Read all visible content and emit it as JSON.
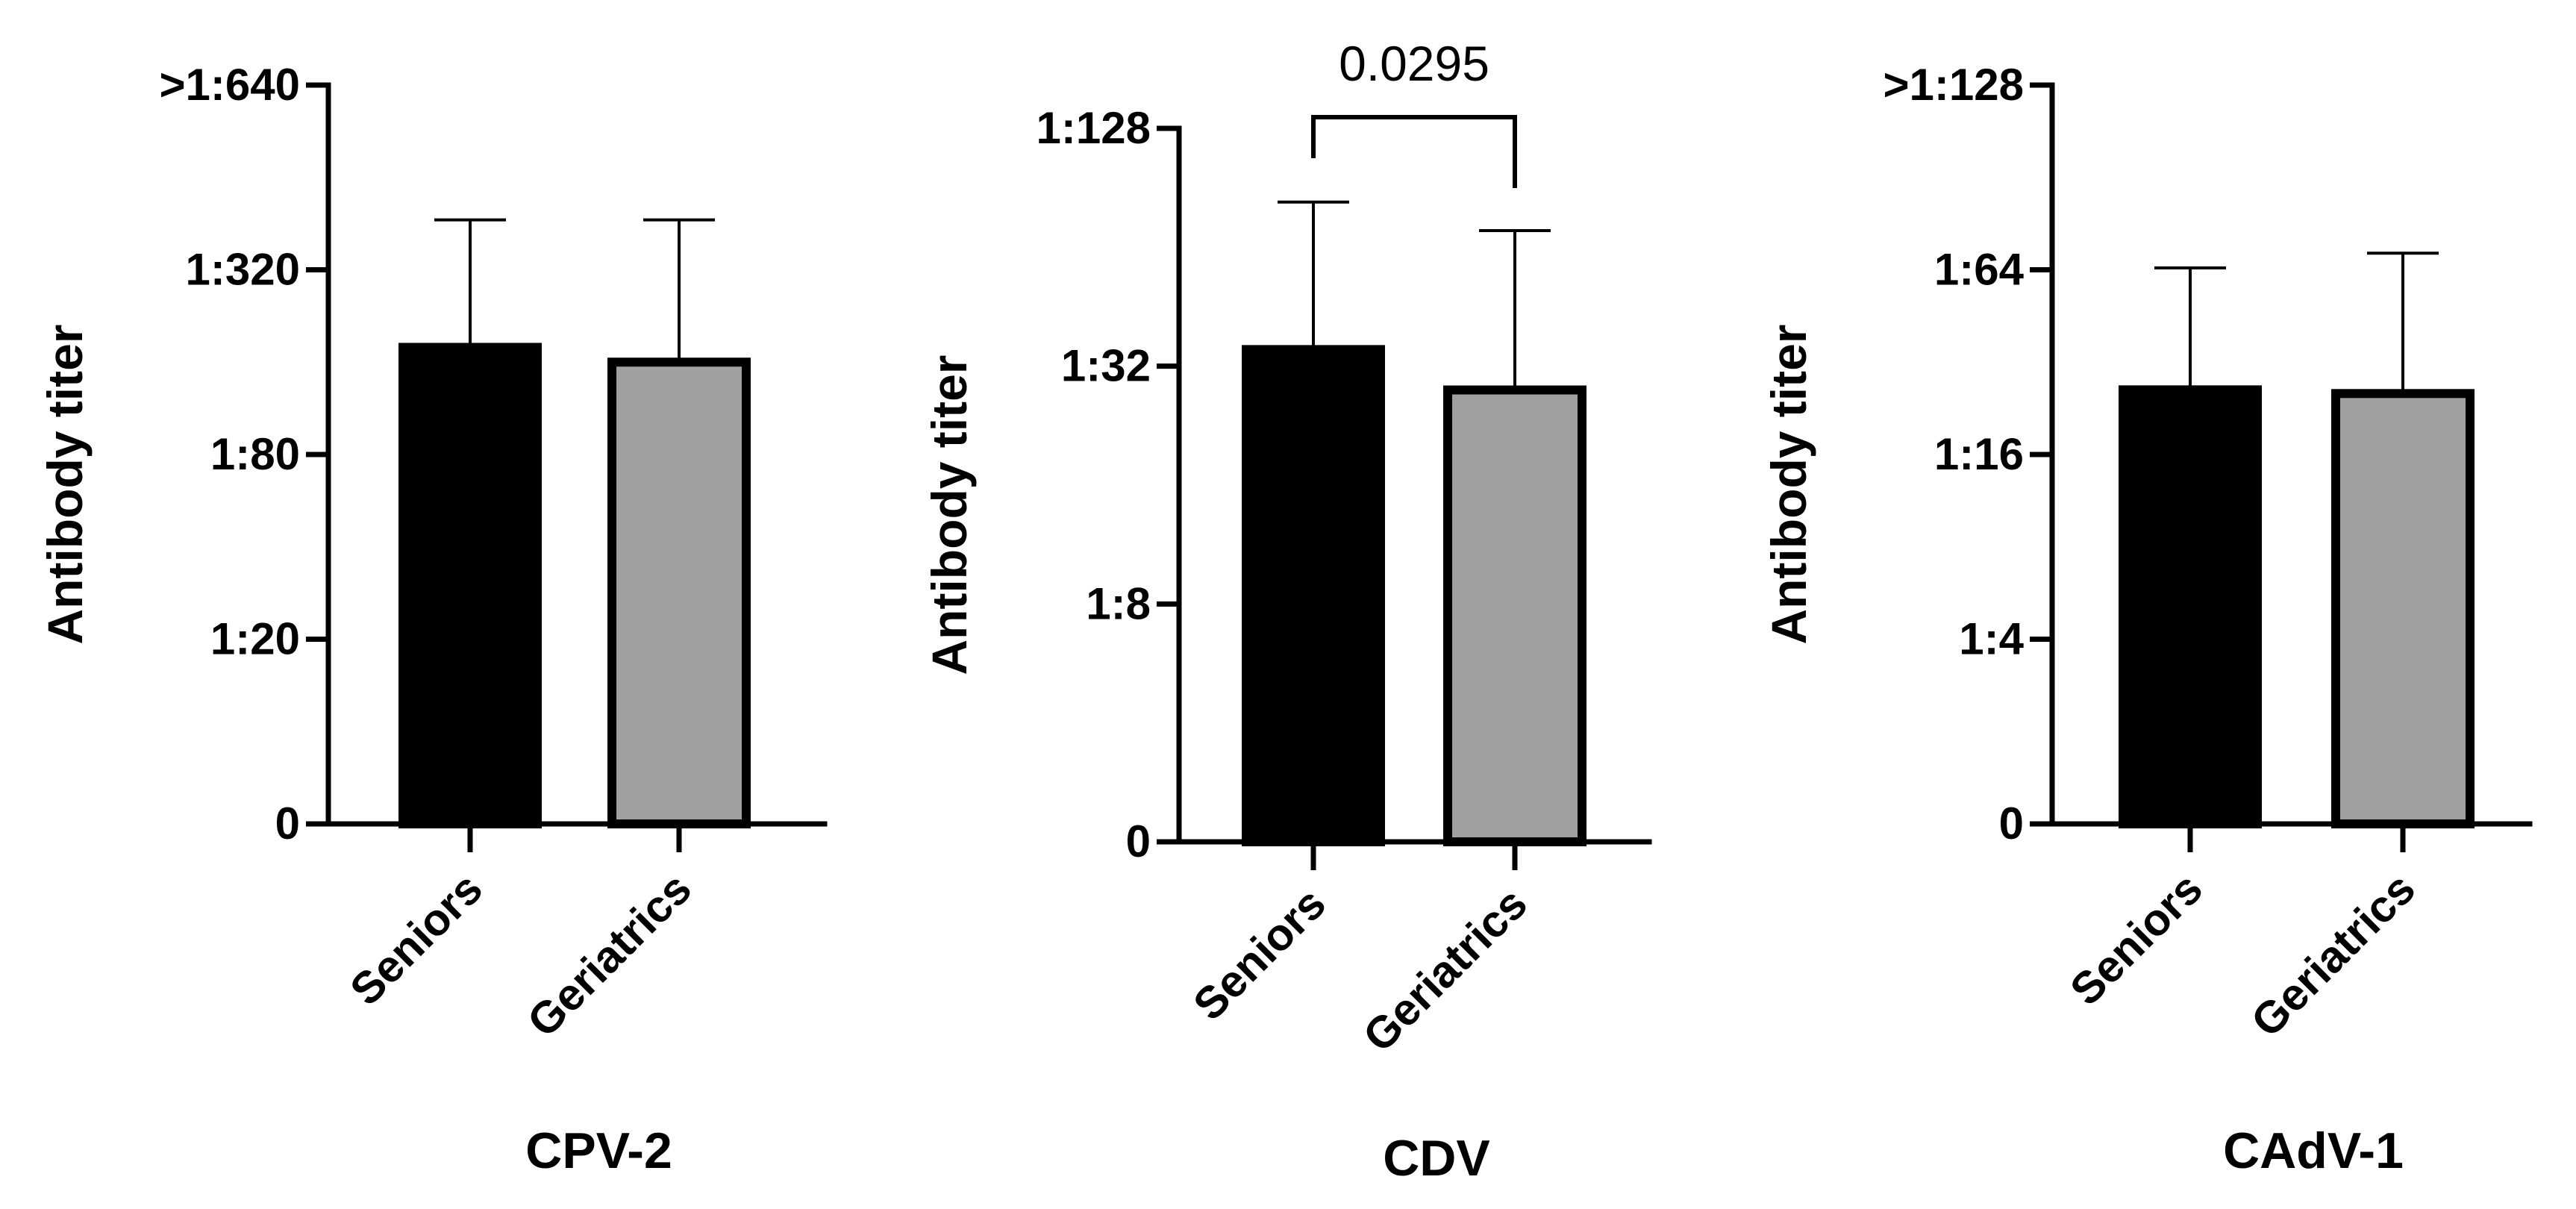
{
  "colors": {
    "seniors": "#000000",
    "geriatrics": "#a0a0a0"
  },
  "chart_data": [
    {
      "type": "bar",
      "name": "cpv2",
      "xlabel": "CPV-2",
      "ylabel": "Antibody titer",
      "categories": [
        "Seniors",
        "Geriatrics"
      ],
      "yscale": "log2",
      "ylim_log2": [
        0,
        4
      ],
      "y_ticks": [
        {
          "value": 0,
          "label": "0"
        },
        {
          "value": 1,
          "label": "1:20"
        },
        {
          "value": 2,
          "label": "1:80"
        },
        {
          "value": 3,
          "label": "1:320"
        },
        {
          "value": 4,
          "label": ">1:640"
        }
      ],
      "values": [
        2.58,
        2.5
      ],
      "errors": [
        0.69,
        0.77
      ],
      "significance": null
    },
    {
      "type": "bar",
      "name": "cdv",
      "xlabel": "CDV",
      "ylabel": "Antibody titer",
      "categories": [
        "Seniors",
        "Geriatrics"
      ],
      "yscale": "log2",
      "ylim_log2": [
        0,
        3
      ],
      "y_ticks": [
        {
          "value": 0,
          "label": "0"
        },
        {
          "value": 1,
          "label": "1:8"
        },
        {
          "value": 2,
          "label": "1:32"
        },
        {
          "value": 3,
          "label": "1:128"
        }
      ],
      "values": [
        2.07,
        1.9
      ],
      "errors": [
        0.62,
        0.67
      ],
      "significance": {
        "p_label": "0.0295"
      }
    },
    {
      "type": "bar",
      "name": "cadv1",
      "xlabel": "CAdV-1",
      "ylabel": "Antibody titer",
      "categories": [
        "Seniors",
        "Geriatrics"
      ],
      "yscale": "log2",
      "ylim_log2": [
        0,
        4
      ],
      "y_ticks": [
        {
          "value": 0,
          "label": "0"
        },
        {
          "value": 1,
          "label": "1:4"
        },
        {
          "value": 2,
          "label": "1:16"
        },
        {
          "value": 3,
          "label": "1:64"
        },
        {
          "value": 4,
          "label": ">1:128"
        }
      ],
      "values": [
        2.35,
        2.33
      ],
      "errors": [
        0.66,
        0.76
      ],
      "significance": null
    }
  ]
}
